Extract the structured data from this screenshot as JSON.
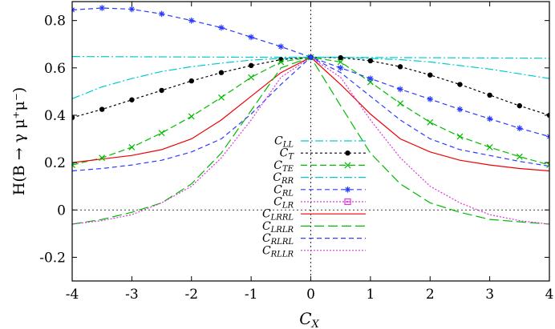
{
  "chart_data": {
    "type": "line",
    "xlabel": "C_X",
    "ylabel": "H(B → γ μ⁺μ⁻)",
    "xlim": [
      -4,
      4
    ],
    "ylim": [
      -0.3,
      0.88
    ],
    "x_ticks": [
      -4,
      -3,
      -2,
      -1,
      0,
      1,
      2,
      3,
      4
    ],
    "y_ticks": [
      -0.2,
      0,
      0.2,
      0.4,
      0.6,
      0.8
    ],
    "x_tick_labels": [
      "-4",
      "-3",
      "-2",
      "-1",
      "0",
      "1",
      "2",
      "3",
      "4"
    ],
    "y_tick_labels": [
      "-0.2",
      "0",
      "0.2",
      "0.4",
      "0.6",
      "0.8"
    ],
    "reference_lines": {
      "y_zero": true,
      "x_zero": true
    },
    "series": [
      {
        "name": "LL",
        "label_main": "C",
        "label_sub": "LL",
        "color": "#00cccc",
        "dash": "10,3,2,3",
        "marker": "none",
        "x": [
          -4,
          -3.5,
          -3,
          -2.5,
          -2,
          -1.5,
          -1,
          -0.5,
          0,
          0.5,
          1,
          1.5,
          2,
          2.5,
          3,
          3.5,
          4
        ],
        "y": [
          0.47,
          0.52,
          0.555,
          0.585,
          0.605,
          0.62,
          0.633,
          0.64,
          0.645,
          0.645,
          0.64,
          0.635,
          0.625,
          0.61,
          0.595,
          0.575,
          0.555
        ]
      },
      {
        "name": "T",
        "label_main": "C",
        "label_sub": "T",
        "color": "#000000",
        "dash": "3,3",
        "marker": "dot",
        "x": [
          -4,
          -3.5,
          -3,
          -2.5,
          -2,
          -1.5,
          -1,
          -0.5,
          0,
          0.5,
          1,
          1.5,
          2,
          2.5,
          3,
          3.5,
          4
        ],
        "y": [
          0.39,
          0.425,
          0.465,
          0.505,
          0.545,
          0.58,
          0.61,
          0.635,
          0.645,
          0.643,
          0.63,
          0.605,
          0.57,
          0.53,
          0.485,
          0.44,
          0.4
        ]
      },
      {
        "name": "TE",
        "label_main": "C",
        "label_sub": "TE",
        "color": "#00bb00",
        "dash": "8,4",
        "marker": "cross",
        "x": [
          -4,
          -3.5,
          -3,
          -2.5,
          -2,
          -1.5,
          -1,
          -0.5,
          0,
          0.5,
          1,
          1.5,
          2,
          2.5,
          3,
          3.5,
          4
        ],
        "y": [
          0.19,
          0.22,
          0.265,
          0.325,
          0.395,
          0.475,
          0.56,
          0.625,
          0.645,
          0.625,
          0.54,
          0.45,
          0.37,
          0.31,
          0.265,
          0.225,
          0.19
        ]
      },
      {
        "name": "RR",
        "label_main": "C",
        "label_sub": "RR",
        "color": "#00cccc",
        "dash": "10,3,2,3",
        "marker": "none",
        "x": [
          -4,
          -3,
          -2,
          -1,
          0,
          1,
          2,
          3,
          4
        ],
        "y": [
          0.648,
          0.647,
          0.646,
          0.645,
          0.645,
          0.644,
          0.643,
          0.642,
          0.641
        ]
      },
      {
        "name": "RL",
        "label_main": "C",
        "label_sub": "RL",
        "color": "#2a3cff",
        "dash": "6,4",
        "marker": "star",
        "x": [
          -4,
          -3.5,
          -3,
          -2.5,
          -2,
          -1.5,
          -1,
          -0.5,
          0,
          0.5,
          1,
          1.5,
          2,
          2.5,
          3,
          3.5,
          4
        ],
        "y": [
          0.845,
          0.853,
          0.848,
          0.828,
          0.8,
          0.77,
          0.73,
          0.69,
          0.645,
          0.6,
          0.555,
          0.51,
          0.468,
          0.425,
          0.385,
          0.345,
          0.31
        ]
      },
      {
        "name": "LR",
        "label_main": "C",
        "label_sub": "LR",
        "color": "#dd33dd",
        "dash": "2,2",
        "marker": "square",
        "x": [],
        "y": []
      },
      {
        "name": "LRRL",
        "label_main": "C",
        "label_sub": "LRRL",
        "color": "#ee0000",
        "dash": "",
        "marker": "none",
        "x": [
          -4,
          -3.5,
          -3,
          -2.5,
          -2,
          -1.5,
          -1,
          -0.5,
          0,
          0.5,
          1,
          1.5,
          2,
          2.5,
          3,
          3.5,
          4
        ],
        "y": [
          0.2,
          0.215,
          0.23,
          0.255,
          0.3,
          0.38,
          0.48,
          0.58,
          0.645,
          0.53,
          0.405,
          0.3,
          0.245,
          0.21,
          0.19,
          0.175,
          0.165
        ]
      },
      {
        "name": "LRLR",
        "label_main": "C",
        "label_sub": "LRLR",
        "color": "#00bb00",
        "dash": "12,5",
        "marker": "none",
        "x": [
          -4,
          -3.5,
          -3,
          -2.5,
          -2,
          -1.5,
          -1,
          -0.5,
          0,
          0.5,
          1,
          1.5,
          2,
          2.5,
          3,
          3.5,
          4
        ],
        "y": [
          -0.06,
          -0.04,
          -0.01,
          0.03,
          0.11,
          0.24,
          0.42,
          0.6,
          0.645,
          0.44,
          0.24,
          0.11,
          0.03,
          -0.01,
          -0.04,
          -0.05,
          -0.06
        ]
      },
      {
        "name": "RLRL",
        "label_main": "C",
        "label_sub": "RLRL",
        "color": "#2a3cff",
        "dash": "6,4",
        "marker": "none",
        "x": [
          -4,
          -3.5,
          -3,
          -2.5,
          -2,
          -1.5,
          -1,
          -0.5,
          0,
          0.5,
          1,
          1.5,
          2,
          2.5,
          3,
          3.5,
          4
        ],
        "y": [
          0.165,
          0.175,
          0.19,
          0.21,
          0.245,
          0.3,
          0.405,
          0.53,
          0.645,
          0.58,
          0.48,
          0.38,
          0.3,
          0.255,
          0.23,
          0.205,
          0.185
        ]
      },
      {
        "name": "RLLR",
        "label_main": "C",
        "label_sub": "RLLR",
        "color": "#dd33dd",
        "dash": "2,2",
        "marker": "none",
        "x": [
          -4,
          -3.5,
          -3,
          -2.5,
          -2,
          -1.5,
          -1,
          -0.5,
          0,
          0.5,
          1,
          1.5,
          2,
          2.5,
          3,
          3.5,
          4
        ],
        "y": [
          -0.06,
          -0.045,
          -0.02,
          0.03,
          0.1,
          0.22,
          0.38,
          0.56,
          0.645,
          0.56,
          0.38,
          0.22,
          0.1,
          0.03,
          -0.02,
          -0.045,
          -0.06
        ]
      }
    ]
  }
}
